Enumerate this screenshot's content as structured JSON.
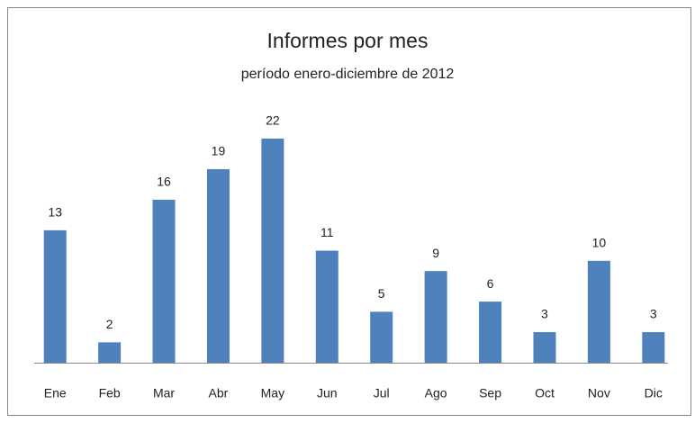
{
  "chart_data": {
    "type": "bar",
    "title": "Informes por mes",
    "subtitle": "período enero-diciembre de 2012",
    "categories": [
      "Ene",
      "Feb",
      "Mar",
      "Abr",
      "May",
      "Jun",
      "Jul",
      "Ago",
      "Sep",
      "Oct",
      "Nov",
      "Dic"
    ],
    "values": [
      13,
      2,
      16,
      19,
      22,
      11,
      5,
      9,
      6,
      3,
      10,
      3
    ],
    "color": "#4f81bd"
  }
}
